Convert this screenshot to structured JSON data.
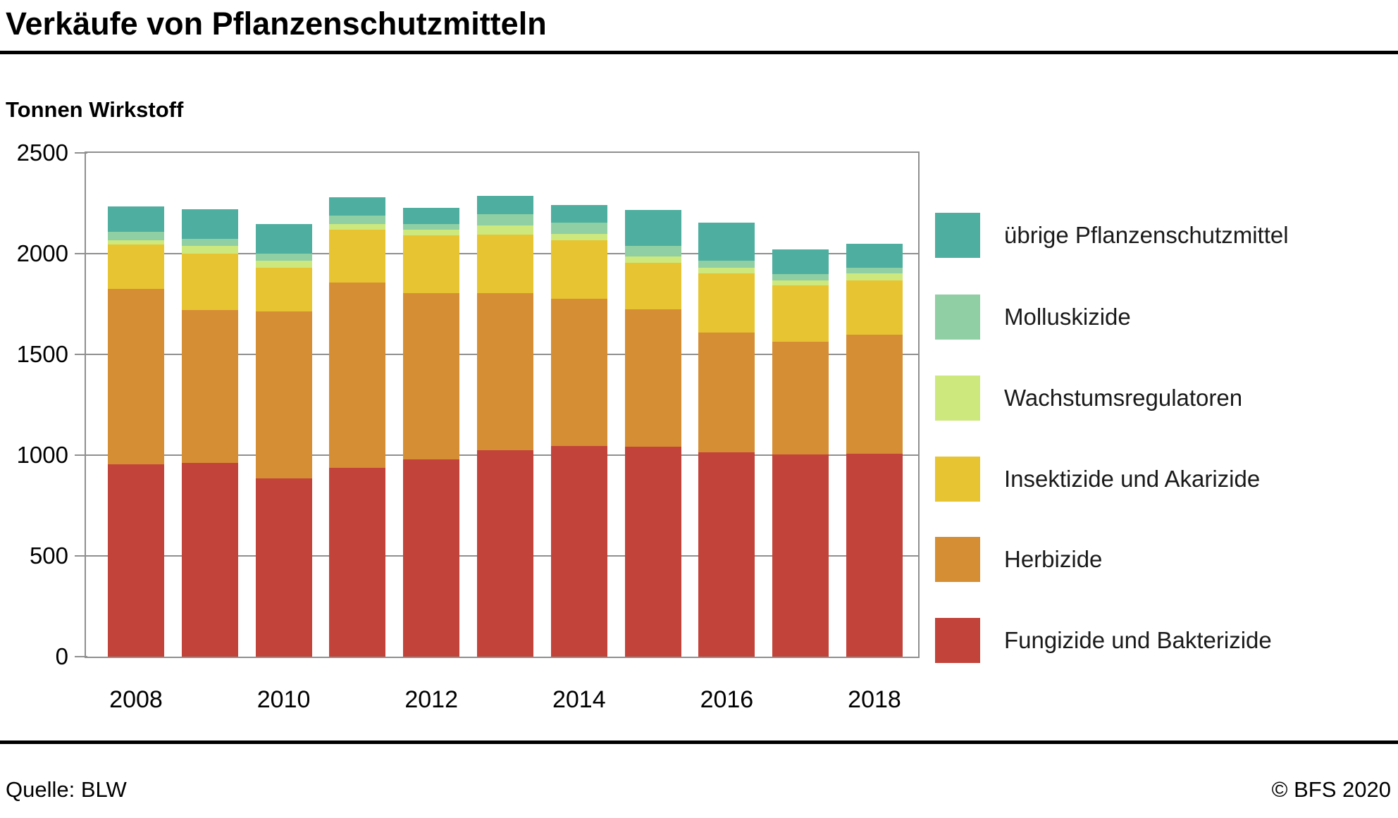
{
  "header": {
    "title": "Verkäufe von Pflanzenschutzmitteln"
  },
  "subtitle": "Tonnen Wirkstoff",
  "footer": {
    "source": "Quelle: BLW",
    "copyright": "© BFS 2020"
  },
  "chart_data": {
    "type": "bar",
    "stacked": true,
    "title": "Verkäufe von Pflanzenschutzmitteln",
    "ylabel": "Tonnen Wirkstoff",
    "categories": [
      "2008",
      "2009",
      "2010",
      "2011",
      "2012",
      "2013",
      "2014",
      "2015",
      "2016",
      "2017",
      "2018"
    ],
    "x_tick_labels": [
      "2008",
      "2010",
      "2012",
      "2014",
      "2016",
      "2018"
    ],
    "x_tick_every": 2,
    "ylim": [
      0,
      2500
    ],
    "ytick_interval": 500,
    "yticks": [
      0,
      500,
      1000,
      1500,
      2000,
      2500
    ],
    "grid": true,
    "legend_position": "right",
    "axis_color": "#8f8f8f",
    "series": [
      {
        "name": "Fungizide und Bakterizide",
        "color": "#c2433a",
        "values": [
          956,
          962,
          884,
          938,
          979,
          1024,
          1047,
          1043,
          1014,
          1003,
          1008
        ]
      },
      {
        "name": "Herbizide",
        "color": "#d68e35",
        "values": [
          868,
          757,
          830,
          919,
          824,
          779,
          731,
          681,
          595,
          561,
          589
        ]
      },
      {
        "name": "Insektizide und Akarizide",
        "color": "#e7c532",
        "values": [
          222,
          280,
          215,
          262,
          287,
          292,
          288,
          231,
          294,
          278,
          271
        ]
      },
      {
        "name": "Wachstumsregulatoren",
        "color": "#cde87d",
        "values": [
          21,
          39,
          35,
          29,
          28,
          46,
          32,
          32,
          26,
          24,
          34
        ]
      },
      {
        "name": "Molluskizide",
        "color": "#8fcfa3",
        "values": [
          42,
          36,
          36,
          40,
          29,
          56,
          55,
          53,
          37,
          32,
          27
        ]
      },
      {
        "name": "übrige Pflanzenschutzmittel",
        "color": "#4eae9f",
        "values": [
          126,
          147,
          146,
          93,
          79,
          90,
          90,
          178,
          189,
          124,
          120
        ]
      }
    ],
    "totals": [
      2235,
      2221,
      2146,
      2281,
      2226,
      2287,
      2243,
      2218,
      2155,
      2022,
      2049
    ]
  }
}
